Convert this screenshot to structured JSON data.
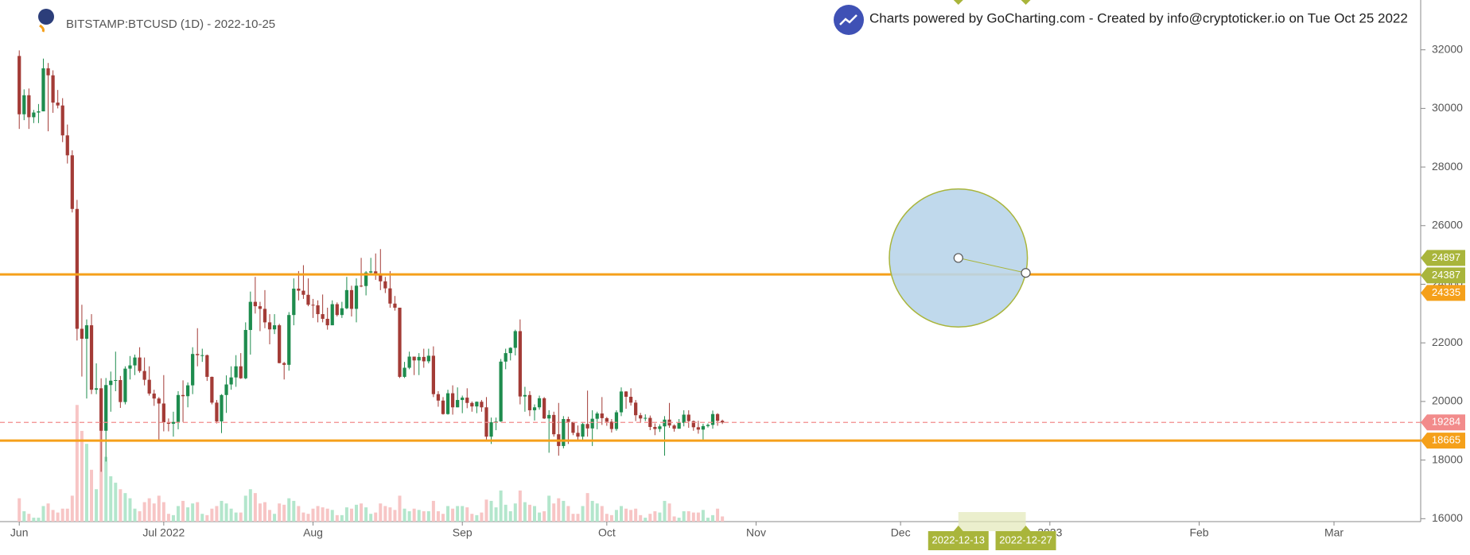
{
  "chart_data": {
    "type": "candlestick",
    "title": "BITSTAMP:BTCUSD (1D) - 2022-10-25",
    "subtitle": "Charts powered by GoCharting.com - Created by info@cryptoticker.io on Tue Oct 25 2022",
    "up_color": "#1e8c4e",
    "down_color": "#a33b36",
    "volume_up_color": "#b3e6cc",
    "volume_down_color": "#f7c5c5",
    "x": [
      "2022-06-01",
      "2022-06-02",
      "2022-06-03",
      "2022-06-04",
      "2022-06-05",
      "2022-06-06",
      "2022-06-07",
      "2022-06-08",
      "2022-06-09",
      "2022-06-10",
      "2022-06-11",
      "2022-06-12",
      "2022-06-13",
      "2022-06-14",
      "2022-06-15",
      "2022-06-16",
      "2022-06-17",
      "2022-06-18",
      "2022-06-19",
      "2022-06-20",
      "2022-06-21",
      "2022-06-22",
      "2022-06-23",
      "2022-06-24",
      "2022-06-25",
      "2022-06-26",
      "2022-06-27",
      "2022-06-28",
      "2022-06-29",
      "2022-06-30",
      "2022-07-01",
      "2022-07-02",
      "2022-07-03",
      "2022-07-04",
      "2022-07-05",
      "2022-07-06",
      "2022-07-07",
      "2022-07-08",
      "2022-07-09",
      "2022-07-10",
      "2022-07-11",
      "2022-07-12",
      "2022-07-13",
      "2022-07-14",
      "2022-07-15",
      "2022-07-16",
      "2022-07-17",
      "2022-07-18",
      "2022-07-19",
      "2022-07-20",
      "2022-07-21",
      "2022-07-22",
      "2022-07-23",
      "2022-07-24",
      "2022-07-25",
      "2022-07-26",
      "2022-07-27",
      "2022-07-28",
      "2022-07-29",
      "2022-07-30",
      "2022-07-31",
      "2022-08-01",
      "2022-08-02",
      "2022-08-03",
      "2022-08-04",
      "2022-08-05",
      "2022-08-06",
      "2022-08-07",
      "2022-08-08",
      "2022-08-09",
      "2022-08-10",
      "2022-08-11",
      "2022-08-12",
      "2022-08-13",
      "2022-08-14",
      "2022-08-15",
      "2022-08-16",
      "2022-08-17",
      "2022-08-18",
      "2022-08-19",
      "2022-08-20",
      "2022-08-21",
      "2022-08-22",
      "2022-08-23",
      "2022-08-24",
      "2022-08-25",
      "2022-08-26",
      "2022-08-27",
      "2022-08-28",
      "2022-08-29",
      "2022-08-30",
      "2022-08-31",
      "2022-09-01",
      "2022-09-02",
      "2022-09-03",
      "2022-09-04",
      "2022-09-05",
      "2022-09-06",
      "2022-09-07",
      "2022-09-08",
      "2022-09-09",
      "2022-09-10",
      "2022-09-11",
      "2022-09-12",
      "2022-09-13",
      "2022-09-14",
      "2022-09-15",
      "2022-09-16",
      "2022-09-17",
      "2022-09-18",
      "2022-09-19",
      "2022-09-20",
      "2022-09-21",
      "2022-09-22",
      "2022-09-23",
      "2022-09-24",
      "2022-09-25",
      "2022-09-26",
      "2022-09-27",
      "2022-09-28",
      "2022-09-29",
      "2022-09-30",
      "2022-10-01",
      "2022-10-02",
      "2022-10-03",
      "2022-10-04",
      "2022-10-05",
      "2022-10-06",
      "2022-10-07",
      "2022-10-08",
      "2022-10-09",
      "2022-10-10",
      "2022-10-11",
      "2022-10-12",
      "2022-10-13",
      "2022-10-14",
      "2022-10-15",
      "2022-10-16",
      "2022-10-17",
      "2022-10-18",
      "2022-10-19",
      "2022-10-20",
      "2022-10-21",
      "2022-10-22",
      "2022-10-23",
      "2022-10-24",
      "2022-10-25"
    ],
    "open": [
      31790,
      29800,
      30450,
      29700,
      29860,
      29900,
      31370,
      31130,
      30200,
      30100,
      29080,
      28400,
      26570,
      22480,
      22140,
      22600,
      20400,
      20450,
      19000,
      20560,
      20710,
      20730,
      19980,
      21120,
      21230,
      21500,
      21040,
      20740,
      20270,
      20100,
      19930,
      19290,
      19240,
      19300,
      20220,
      20180,
      20550,
      21620,
      21580,
      21580,
      20840,
      19960,
      19320,
      20220,
      20580,
      20820,
      21200,
      20790,
      22440,
      23400,
      23250,
      23160,
      22700,
      22460,
      22600,
      21310,
      21250,
      22950,
      23850,
      23780,
      23640,
      23300,
      23280,
      22980,
      22820,
      22600,
      23320,
      22950,
      23180,
      23800,
      23160,
      23950,
      23940,
      24400,
      24440,
      24300,
      24100,
      23860,
      23340,
      23200,
      20840,
      21150,
      21530,
      21400,
      21520,
      21370,
      21560,
      20250,
      20030,
      19570,
      20280,
      19800,
      20050,
      20130,
      19950,
      19830,
      19990,
      19800,
      18800,
      19290,
      19320,
      21360,
      21650,
      21830,
      22400,
      20170,
      20220,
      19700,
      19800,
      20110,
      19420,
      19540,
      18880,
      18480,
      19400,
      19300,
      18930,
      18800,
      19230,
      19080,
      19410,
      19590,
      19430,
      19310,
      19060,
      19630,
      20340,
      20160,
      19960,
      19530,
      19420,
      19440,
      19130,
      19060,
      19150,
      19380,
      19180,
      19070,
      19270,
      19550,
      19330,
      19120,
      19040,
      19160,
      19200,
      19570,
      19340
    ],
    "high": [
      31980,
      30650,
      30680,
      29950,
      30150,
      31700,
      31550,
      31300,
      30630,
      30350,
      29450,
      28570,
      26880,
      23300,
      22800,
      22980,
      21300,
      20790,
      20800,
      21020,
      21700,
      20870,
      21200,
      21550,
      21600,
      21850,
      21500,
      21200,
      20400,
      20150,
      20900,
      19420,
      19650,
      20350,
      20720,
      20650,
      21850,
      22500,
      21800,
      21600,
      20850,
      20050,
      20250,
      20890,
      21200,
      21580,
      21650,
      22700,
      23750,
      24250,
      23400,
      23800,
      22980,
      22980,
      22650,
      21350,
      23050,
      24200,
      24450,
      24650,
      24200,
      23500,
      23450,
      23650,
      23200,
      23450,
      23380,
      23400,
      24250,
      23950,
      24200,
      24900,
      24450,
      24900,
      25050,
      25200,
      24250,
      24450,
      23600,
      23200,
      21350,
      21700,
      21530,
      21650,
      21800,
      21800,
      21880,
      20350,
      20150,
      20400,
      20550,
      20480,
      20200,
      20450,
      20000,
      20000,
      20050,
      20150,
      19450,
      19450,
      21450,
      21800,
      21850,
      22450,
      22800,
      20500,
      20350,
      19900,
      20200,
      20150,
      19700,
      19650,
      19950,
      19500,
      19480,
      19300,
      19180,
      19300,
      20370,
      19700,
      19650,
      20150,
      19470,
      19400,
      19700,
      20480,
      20350,
      20450,
      20050,
      19610,
      19560,
      19520,
      19250,
      19220,
      19500,
      19950,
      19220,
      19400,
      19700,
      19700,
      19350,
      19340,
      19240,
      19250,
      19690,
      19600,
      19380
    ],
    "low": [
      29300,
      29600,
      29300,
      29500,
      29500,
      29900,
      29220,
      29850,
      30000,
      28850,
      28120,
      26450,
      22080,
      20850,
      20100,
      20250,
      20250,
      17600,
      17950,
      19650,
      20350,
      19780,
      19900,
      20750,
      20900,
      20980,
      20550,
      20200,
      19850,
      18630,
      18980,
      18980,
      18800,
      19050,
      19300,
      19800,
      20250,
      21200,
      21350,
      20700,
      19900,
      19250,
      18920,
      19610,
      20400,
      20500,
      20770,
      20760,
      21600,
      23000,
      22400,
      22500,
      21950,
      22300,
      21300,
      20750,
      21050,
      22600,
      23450,
      23500,
      23250,
      22850,
      22700,
      22700,
      22450,
      22600,
      22900,
      22850,
      23150,
      22900,
      22700,
      23900,
      23620,
      24300,
      24150,
      23800,
      23700,
      23200,
      23100,
      20800,
      20800,
      21100,
      20900,
      20900,
      21150,
      21300,
      20150,
      19820,
      19550,
      19550,
      19550,
      19800,
      19600,
      19770,
      19650,
      19600,
      19650,
      18700,
      18550,
      19020,
      19300,
      21100,
      21400,
      21570,
      19900,
      19650,
      19500,
      19350,
      19720,
      19400,
      18250,
      18800,
      18150,
      18400,
      18550,
      18850,
      18650,
      18680,
      18800,
      18480,
      19050,
      19200,
      19170,
      18940,
      19000,
      19500,
      19750,
      19860,
      19330,
      19270,
      19330,
      19020,
      18850,
      18960,
      18150,
      19100,
      18970,
      19070,
      19150,
      19100,
      19000,
      18900,
      18650,
      19110,
      19070,
      19170,
      19230
    ],
    "close": [
      29800,
      30450,
      29700,
      29860,
      29900,
      31370,
      31130,
      30200,
      30100,
      29080,
      28400,
      26570,
      22480,
      22140,
      22600,
      20400,
      20450,
      19000,
      20560,
      20710,
      20730,
      19980,
      21120,
      21230,
      21500,
      21040,
      20740,
      20270,
      20100,
      19930,
      19290,
      19240,
      19300,
      20220,
      20180,
      20550,
      21620,
      21580,
      21580,
      20840,
      19960,
      19320,
      20220,
      20580,
      20820,
      21200,
      20790,
      22440,
      23400,
      23250,
      23160,
      22700,
      22460,
      22600,
      21310,
      21250,
      22950,
      23850,
      23780,
      23640,
      23300,
      23280,
      22980,
      22820,
      22600,
      23320,
      22950,
      23180,
      23800,
      23160,
      23950,
      23940,
      24400,
      24440,
      24300,
      24100,
      23860,
      23340,
      23200,
      20840,
      21150,
      21530,
      21400,
      21520,
      21370,
      21560,
      20250,
      20030,
      19570,
      20280,
      19800,
      20050,
      20130,
      19950,
      19830,
      19990,
      19800,
      18800,
      19290,
      19320,
      21360,
      21650,
      21830,
      22400,
      20170,
      20220,
      19700,
      19800,
      20110,
      19420,
      19540,
      18880,
      18480,
      19400,
      19300,
      18930,
      18800,
      19230,
      19080,
      19410,
      19590,
      19430,
      19310,
      19060,
      19630,
      20340,
      20160,
      19960,
      19530,
      19420,
      19440,
      19130,
      19060,
      19150,
      19380,
      19180,
      19070,
      19270,
      19550,
      19330,
      19120,
      19040,
      19160,
      19200,
      19570,
      19340,
      19284
    ],
    "volume": [
      18,
      8,
      6,
      3,
      3,
      12,
      14,
      9,
      7,
      10,
      10,
      20,
      90,
      70,
      60,
      40,
      25,
      80,
      50,
      35,
      30,
      25,
      22,
      18,
      10,
      8,
      15,
      18,
      14,
      20,
      15,
      6,
      5,
      12,
      16,
      11,
      14,
      15,
      6,
      5,
      10,
      12,
      16,
      14,
      10,
      7,
      7,
      20,
      25,
      22,
      14,
      15,
      9,
      6,
      14,
      13,
      18,
      16,
      12,
      7,
      6,
      10,
      12,
      11,
      10,
      9,
      5,
      5,
      11,
      10,
      13,
      14,
      11,
      6,
      7,
      14,
      12,
      11,
      9,
      20,
      10,
      8,
      10,
      9,
      8,
      8,
      16,
      8,
      6,
      12,
      10,
      12,
      12,
      11,
      6,
      5,
      7,
      17,
      16,
      11,
      24,
      13,
      8,
      14,
      24,
      15,
      13,
      12,
      7,
      8,
      20,
      14,
      18,
      16,
      12,
      6,
      6,
      12,
      22,
      16,
      14,
      12,
      6,
      5,
      9,
      12,
      10,
      9,
      10,
      5,
      3,
      6,
      8,
      7,
      16,
      14,
      4,
      3,
      8,
      8,
      7,
      7,
      9,
      3,
      5,
      10,
      4
    ],
    "xlim": [
      "2022-05-28",
      "2023-03-19"
    ],
    "xticks": [
      {
        "value": "2022-06-01",
        "label": "Jun"
      },
      {
        "value": "2022-07-01",
        "label": "Jul 2022"
      },
      {
        "value": "2022-08-01",
        "label": "Aug"
      },
      {
        "value": "2022-09-01",
        "label": "Sep"
      },
      {
        "value": "2022-10-01",
        "label": "Oct"
      },
      {
        "value": "2022-11-01",
        "label": "Nov"
      },
      {
        "value": "2022-12-01",
        "label": "Dec"
      },
      {
        "value": "2023-01-01",
        "label": "2023"
      },
      {
        "value": "2023-02-01",
        "label": "Feb"
      },
      {
        "value": "2023-03-01",
        "label": "Mar"
      }
    ],
    "ylim": [
      15900,
      33700
    ],
    "yticks": [
      16000,
      18000,
      20000,
      22000,
      24000,
      26000,
      28000,
      30000,
      32000
    ],
    "lines": [
      {
        "value": 24335,
        "color": "#f5a01a",
        "style": "solid"
      },
      {
        "value": 18665,
        "color": "#f5a01a",
        "style": "solid"
      },
      {
        "value": 19284,
        "color": "#f28b8b",
        "style": "dashed"
      }
    ],
    "circle": {
      "fill": "#b9d5ea",
      "stroke": "#a9b53b",
      "center": {
        "x": "2022-12-13",
        "y": 24897
      },
      "edge": {
        "x": "2022-12-27",
        "y": 24387
      }
    }
  }
}
